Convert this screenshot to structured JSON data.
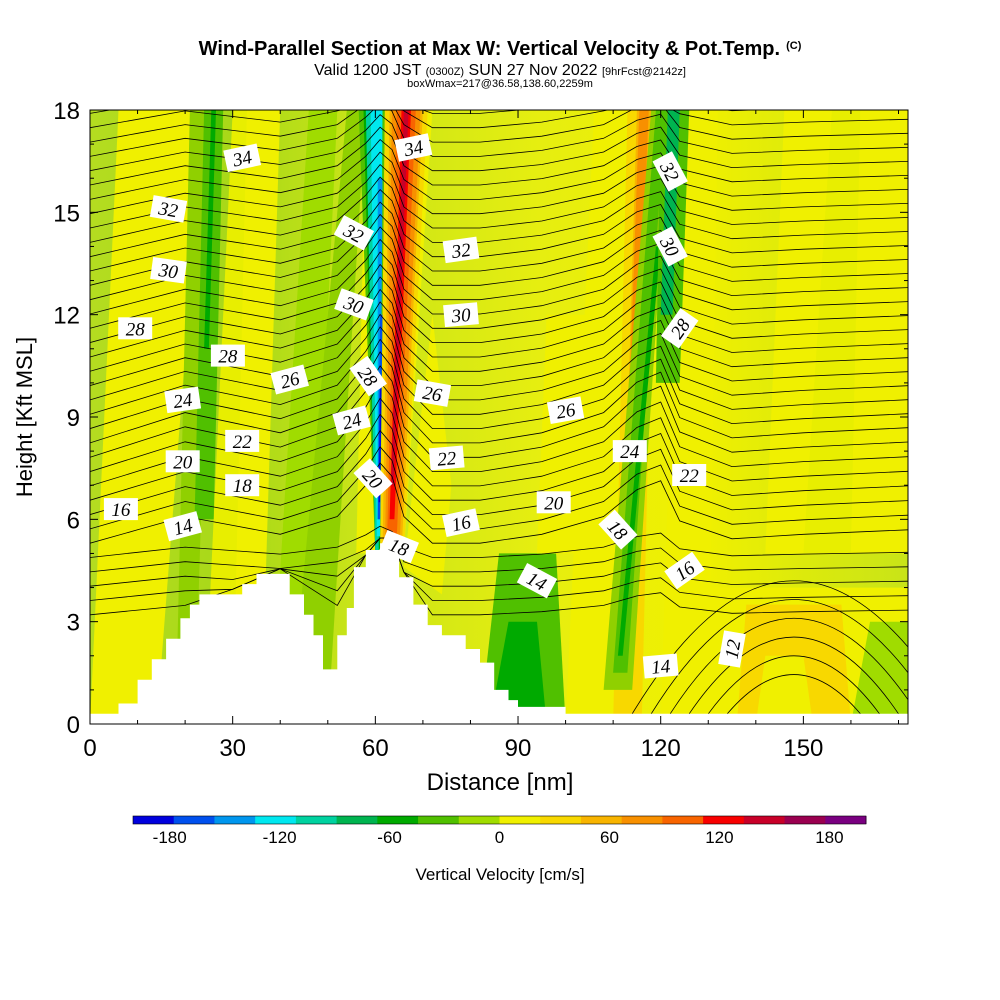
{
  "chart_data": {
    "type": "heatmap",
    "title": "Wind-Parallel Section at Max W: Vertical Velocity & Pot.Temp.",
    "title_suffix": "(C)",
    "subtitle_main_a": "Valid 1200 JST",
    "subtitle_small_a": "(0300Z)",
    "subtitle_main_b": "SUN 27 Nov 2022",
    "subtitle_small_b": "[9hrFcst@2142z]",
    "subtitle2": "boxWmax=217@36.58,138.60,2259m",
    "xlabel": "Distance [nm]",
    "ylabel": "Height [Kft MSL]",
    "xlim": [
      0,
      172
    ],
    "ylim": [
      0,
      18
    ],
    "xticks": [
      "0",
      "30",
      "60",
      "90",
      "120",
      "150"
    ],
    "xtick_values": [
      0,
      30,
      60,
      90,
      120,
      150
    ],
    "yticks": [
      "0",
      "3",
      "6",
      "9",
      "12",
      "15",
      "18"
    ],
    "ytick_values": [
      0,
      3,
      6,
      9,
      12,
      15,
      18
    ],
    "colorbar": {
      "label": "Vertical Velocity [cm/s]",
      "tick_labels": [
        "-180",
        "-120",
        "-60",
        "0",
        "60",
        "120",
        "180"
      ],
      "tick_values": [
        -180,
        -120,
        -60,
        0,
        60,
        120,
        180
      ],
      "range": [
        -200,
        200
      ],
      "colors": [
        "#0000dd",
        "#0050ee",
        "#0096ee",
        "#00e8f0",
        "#00d2a0",
        "#00b450",
        "#00aa00",
        "#50c000",
        "#a0dc00",
        "#f0f000",
        "#f8d800",
        "#f8b400",
        "#f89000",
        "#f86400",
        "#f80000",
        "#c80028",
        "#9a0050",
        "#7a0080"
      ]
    },
    "theta_contour_labels": [
      {
        "text": "34",
        "x": 32,
        "y": 16.6,
        "rot": -12
      },
      {
        "text": "34",
        "x": 68,
        "y": 16.9,
        "rot": -12
      },
      {
        "text": "32",
        "x": 16.5,
        "y": 15.1,
        "rot": 10
      },
      {
        "text": "32",
        "x": 55.5,
        "y": 14.4,
        "rot": 28
      },
      {
        "text": "32",
        "x": 78,
        "y": 13.9,
        "rot": -8
      },
      {
        "text": "32",
        "x": 122,
        "y": 16.2,
        "rot": 62
      },
      {
        "text": "30",
        "x": 16.5,
        "y": 13.3,
        "rot": 8
      },
      {
        "text": "30",
        "x": 55.5,
        "y": 12.3,
        "rot": 20
      },
      {
        "text": "30",
        "x": 78,
        "y": 12.0,
        "rot": -5
      },
      {
        "text": "30",
        "x": 122,
        "y": 14.0,
        "rot": 62
      },
      {
        "text": "28",
        "x": 9.5,
        "y": 11.6,
        "rot": 0
      },
      {
        "text": "28",
        "x": 29,
        "y": 10.8,
        "rot": 0
      },
      {
        "text": "28",
        "x": 58.5,
        "y": 10.2,
        "rot": 55
      },
      {
        "text": "28",
        "x": 124,
        "y": 11.6,
        "rot": -55
      },
      {
        "text": "26",
        "x": 42,
        "y": 10.1,
        "rot": -15
      },
      {
        "text": "26",
        "x": 72,
        "y": 9.7,
        "rot": 10
      },
      {
        "text": "26",
        "x": 100,
        "y": 9.2,
        "rot": -10
      },
      {
        "text": "24",
        "x": 19.5,
        "y": 9.5,
        "rot": -8
      },
      {
        "text": "24",
        "x": 55,
        "y": 8.9,
        "rot": -15
      },
      {
        "text": "24",
        "x": 113.5,
        "y": 8.0,
        "rot": 0
      },
      {
        "text": "22",
        "x": 32,
        "y": 8.3,
        "rot": 0
      },
      {
        "text": "22",
        "x": 75,
        "y": 7.8,
        "rot": -5
      },
      {
        "text": "22",
        "x": 126,
        "y": 7.3,
        "rot": 0
      },
      {
        "text": "20",
        "x": 19.5,
        "y": 7.7,
        "rot": 0
      },
      {
        "text": "20",
        "x": 59.5,
        "y": 7.2,
        "rot": 48
      },
      {
        "text": "20",
        "x": 97.5,
        "y": 6.5,
        "rot": 0
      },
      {
        "text": "18",
        "x": 32,
        "y": 7.0,
        "rot": 0
      },
      {
        "text": "18",
        "x": 65,
        "y": 5.2,
        "rot": 22
      },
      {
        "text": "18",
        "x": 111,
        "y": 5.7,
        "rot": 48
      },
      {
        "text": "16",
        "x": 6.5,
        "y": 6.3,
        "rot": 0
      },
      {
        "text": "16",
        "x": 78,
        "y": 5.9,
        "rot": -12
      },
      {
        "text": "16",
        "x": 125,
        "y": 4.5,
        "rot": -35
      },
      {
        "text": "14",
        "x": 19.5,
        "y": 5.8,
        "rot": -15
      },
      {
        "text": "14",
        "x": 94,
        "y": 4.2,
        "rot": 28
      },
      {
        "text": "14",
        "x": 120,
        "y": 1.7,
        "rot": -5
      },
      {
        "text": "12",
        "x": 135,
        "y": 2.2,
        "rot": -80
      }
    ]
  }
}
